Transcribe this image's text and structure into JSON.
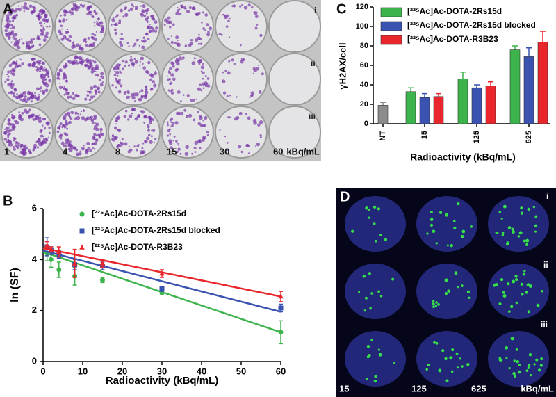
{
  "panel_a": {
    "label": "A",
    "rows": [
      "i",
      "ii",
      "iii"
    ],
    "columns": [
      "1",
      "4",
      "8",
      "15",
      "30",
      "60"
    ],
    "unit": "kBq/mL"
  },
  "chart_data": [
    {
      "type": "scatter",
      "panel_label": "B",
      "x_label": "Radioactivity (kBq/mL)",
      "y_label": "ln (SF)",
      "x": [
        1,
        2,
        4,
        8,
        15,
        30,
        60
      ],
      "fit_x": [
        0,
        60
      ],
      "xlim": [
        0,
        60
      ],
      "xticks": [
        0,
        10,
        20,
        30,
        40,
        50,
        60
      ],
      "ylim": [
        0,
        6
      ],
      "yticks": [
        0,
        2,
        4,
        6
      ],
      "series": [
        {
          "name": "[²²⁵Ac]Ac-DOTA-2Rs15d",
          "color": "#3cb44b",
          "marker": "circle",
          "values": [
            4.25,
            4.0,
            3.6,
            3.35,
            3.2,
            2.7,
            1.15
          ],
          "errors": [
            0.3,
            0.3,
            0.3,
            0.35,
            0.1,
            0.05,
            0.45
          ],
          "fit": [
            4.3,
            1.15
          ]
        },
        {
          "name": "[²²⁵Ac]Ac-DOTA-2Rs15d blocked",
          "color": "#3a52b0",
          "marker": "square",
          "values": [
            4.5,
            4.35,
            4.2,
            3.8,
            3.75,
            2.85,
            2.1
          ],
          "errors": [
            0.35,
            0.15,
            0.15,
            0.2,
            0.15,
            0.1,
            0.15
          ],
          "fit": [
            4.35,
            1.95
          ]
        },
        {
          "name": "[²²⁵Ac]Ac-DOTA-R3B23",
          "color": "#e8262b",
          "marker": "triangle",
          "values": [
            4.55,
            4.4,
            4.3,
            3.85,
            3.85,
            3.45,
            2.55
          ],
          "errors": [
            0.15,
            0.1,
            0.2,
            0.55,
            0.15,
            0.15,
            0.2
          ],
          "fit": [
            4.45,
            2.55
          ]
        }
      ]
    },
    {
      "type": "bar",
      "panel_label": "C",
      "x_label": "Radioactivity (kBq/mL)",
      "y_label": "γH2AX/cell",
      "categories": [
        "NT",
        "15",
        "125",
        "625"
      ],
      "ylim": [
        0,
        120
      ],
      "yticks": [
        0,
        20,
        40,
        60,
        80,
        100,
        120
      ],
      "series": [
        {
          "color": "#8c8c8c",
          "values": [
            19,
            null,
            null,
            null
          ],
          "errors": [
            3,
            null,
            null,
            null
          ]
        },
        {
          "name": "[²²⁵Ac]Ac-DOTA-2Rs15d",
          "color": "#3cb44b",
          "values": [
            null,
            33,
            46,
            76
          ],
          "errors": [
            null,
            4,
            7,
            4
          ]
        },
        {
          "name": "[²²⁵Ac]Ac-DOTA-2Rs15d blocked",
          "color": "#3a52b0",
          "values": [
            null,
            27,
            37,
            69
          ],
          "errors": [
            null,
            4,
            3,
            9
          ]
        },
        {
          "name": "[²²⁵Ac]Ac-DOTA-R3B23",
          "color": "#e8262b",
          "values": [
            null,
            28,
            39,
            84
          ],
          "errors": [
            null,
            3,
            4,
            11
          ]
        }
      ]
    }
  ],
  "panel_d": {
    "label": "D",
    "rows": [
      "i",
      "ii",
      "iii"
    ],
    "columns": [
      "15",
      "125",
      "625"
    ],
    "unit": "kBq/mL"
  }
}
